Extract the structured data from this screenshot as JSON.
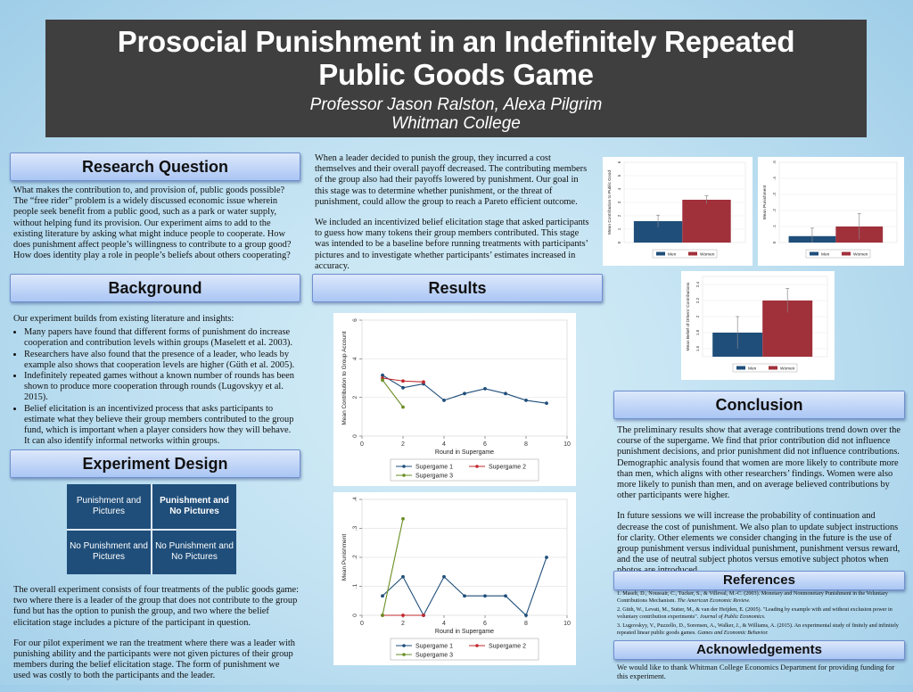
{
  "title": {
    "line1": "Prosocial Punishment in an Indefinitely Repeated",
    "line2": "Public Goods Game",
    "authors": "Professor Jason Ralston, Alexa Pilgrim",
    "institution": "Whitman College"
  },
  "sections": {
    "research_question": "Research Question",
    "background": "Background",
    "experiment_design": "Experiment Design",
    "results": "Results",
    "conclusion": "Conclusion",
    "references": "References",
    "acknowledgements": "Acknowledgements"
  },
  "research_question_text": "What makes the contribution to, and provision of, public goods possible? The “free rider” problem is a widely discussed economic issue wherein people seek benefit from a public good, such as a park or water supply, without helping fund its provision. Our experiment aims to add to the existing literature by asking what might induce people to cooperate. How does punishment affect people’s willingness to contribute to a group good? How does identity play a role in people’s beliefs about others cooperating?",
  "background_intro": "Our experiment builds from existing literature and insights:",
  "background_bullets": [
    "Many papers have found that different forms of punishment do increase cooperation and contribution levels within groups (Maselett et al. 2003).",
    "Researchers have also found that the presence of a leader, who leads by example also shows that cooperation levels are higher (Güth et al. 2005).",
    "Indefinitely repeated games without a known number of rounds has been shown to produce more cooperation through rounds (Lugovskyy et al. 2015).",
    "Belief elicitation is an incentivized process that asks participants to estimate what they believe their group members contributed to the group fund, which is important when a player considers how they will behave. It can also identify informal networks within groups."
  ],
  "design_table": {
    "r1c1": "Punishment and Pictures",
    "r1c2": "Punishment and No Pictures",
    "r2c1": "No Punishment and Pictures",
    "r2c2": "No Punishment and No Pictures"
  },
  "design_text_1": "The overall experiment consists of four treatments of the public goods game: two where there is a leader of the group that does not contribute to the group fund but has the option to punish the group, and two where the belief elicitation stage includes a picture of the participant in question.",
  "design_text_2": "For our pilot experiment we ran the treatment where there was a leader with punishing ability and the participants were not given pictures of their group members during the belief elicitation stage. The form of punishment we used was costly to both the participants and the leader.",
  "middle_text_1": "When a leader decided to punish the group, they incurred a cost themselves and their overall payoff decreased. The contributing members of the group also had their payoffs lowered by punishment. Our goal in this stage was to determine whether punishment, or the threat of punishment, could allow the group to reach a Pareto efficient outcome.",
  "middle_text_2": "We included an incentivized belief elicitation stage that asked participants to guess how many tokens their group members contributed. This stage was intended to be a baseline before running treatments with participants’ pictures and to investigate whether participants’ estimates increased in accuracy.",
  "conclusion_text_1": "The preliminary results show that average contributions trend down over the course of the supergame. We find that prior contribution did not influence punishment decisions, and prior punishment did not influence contributions. Demographic analysis found that women are more likely to contribute more than men, which aligns with other researchers’ findings. Women were also more likely to punish than men, and on average believed contributions by other participants were higher.",
  "conclusion_text_2": "In future sessions we will increase the probability of continuation and decrease the cost of punishment. We also plan to update subject instructions for clarity. Other elements we consider changing in the future is the use of group punishment versus individual punishment, punishment versus reward, and the use of neutral subject photos versus emotive subject photos when photos are introduced.",
  "references": [
    {
      "text": "1. Maselt, D., Noussair, C., Tucker, S., & Villeval, M.-C. (2003). Monetary and Nonmonetary Punishment in the Voluntary Contributions Mechanism. ",
      "journal": "The American Economic Review."
    },
    {
      "text": "2. Güth, W., Levati, M., Sutter, M., & van der Heijden, E. (2005). \"Leading by example with and without exclusion power in voluntary contribution experiments\". ",
      "journal": "Journal of Public Economics."
    },
    {
      "text": "3. Lugovskyy, V., Puzzello, D., Sorensen, A., Walker, J., & Williams, A. (2015). An experimental study of finitely and infinitely repeated linear public goods games. ",
      "journal": "Games and Economic Behavior."
    }
  ],
  "acknowledgements_text": "We would like to thank Whitman College Economics Department for providing funding for this experiment.",
  "colors": {
    "men": "#1f4e7a",
    "women": "#a0303a",
    "sg1": "#1f4e7a",
    "sg2": "#c0282d",
    "sg3": "#6b8e23"
  },
  "chart_data": [
    {
      "type": "line",
      "xlabel": "Round in Supergame",
      "ylabel": "Mean Contribution to Group Account",
      "xlim": [
        0,
        10
      ],
      "ylim": [
        0,
        6
      ],
      "xticks": [
        0,
        2,
        4,
        6,
        8,
        10
      ],
      "yticks": [
        0,
        2,
        4,
        6
      ],
      "series": [
        {
          "name": "Supergame 1",
          "x": [
            1,
            2,
            3,
            4,
            5,
            6,
            7,
            8,
            9
          ],
          "y": [
            3.15,
            2.5,
            2.7,
            1.85,
            2.2,
            2.45,
            2.2,
            1.85,
            1.7
          ]
        },
        {
          "name": "Supergame 2",
          "x": [
            1,
            2,
            3
          ],
          "y": [
            3.0,
            2.85,
            2.8
          ]
        },
        {
          "name": "Supergame 3",
          "x": [
            1,
            2
          ],
          "y": [
            2.9,
            1.5
          ]
        }
      ]
    },
    {
      "type": "line",
      "xlabel": "Round in Supergame",
      "ylabel": "Mean Punishment",
      "xlim": [
        0,
        10
      ],
      "ylim": [
        0,
        0.4
      ],
      "xticks": [
        0,
        2,
        4,
        6,
        8,
        10
      ],
      "yticks": [
        0,
        0.1,
        0.2,
        0.3,
        0.4
      ],
      "ytick_labels": [
        "0",
        ".1",
        ".2",
        ".3",
        ".4"
      ],
      "series": [
        {
          "name": "Supergame 1",
          "x": [
            1,
            2,
            3,
            4,
            5,
            6,
            7,
            8,
            9
          ],
          "y": [
            0.067,
            0.133,
            0,
            0.133,
            0.067,
            0.067,
            0.067,
            0,
            0.2
          ]
        },
        {
          "name": "Supergame 2",
          "x": [
            1,
            2,
            3
          ],
          "y": [
            0,
            0,
            0
          ]
        },
        {
          "name": "Supergame 3",
          "x": [
            1,
            2
          ],
          "y": [
            0,
            0.333
          ]
        }
      ]
    },
    {
      "type": "bar",
      "ylabel": "Mean Contribution to Public Good",
      "categories": [
        "Men",
        "Women"
      ],
      "values": [
        1.6,
        3.2
      ],
      "err": [
        0.45,
        0.3
      ],
      "ylim": [
        0,
        6
      ],
      "yticks": [
        0,
        1,
        2,
        3,
        4,
        5,
        6
      ]
    },
    {
      "type": "bar",
      "ylabel": "Mean Punishment",
      "categories": [
        "Men",
        "Women"
      ],
      "values": [
        0.04,
        0.1
      ],
      "err": [
        0.05,
        0.08
      ],
      "ylim": [
        0,
        0.5
      ],
      "yticks": [
        0,
        0.1,
        0.2,
        0.3,
        0.4,
        0.5
      ],
      "ytick_labels": [
        "0",
        ".1",
        ".2",
        ".3",
        ".4",
        ".5"
      ]
    },
    {
      "type": "bar",
      "ylabel": "Mean Belief of Others' Contributions",
      "categories": [
        "Men",
        "Women"
      ],
      "values": [
        1.8,
        2.2
      ],
      "err": [
        0.2,
        0.15
      ],
      "ylim": [
        1.5,
        2.5
      ],
      "yticks": [
        1.6,
        1.8,
        2,
        2.2,
        2.4
      ],
      "ytick_labels": [
        "1.6",
        "1.8",
        "2",
        "2.2",
        "2.4"
      ]
    }
  ]
}
